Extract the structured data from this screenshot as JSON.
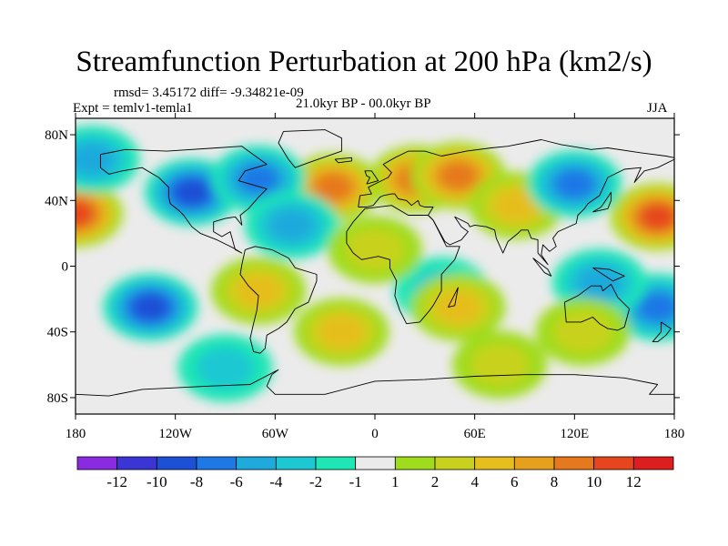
{
  "chart_data": {
    "type": "heatmap",
    "title": "Streamfunction Perturbation at 200 hPa (km2/s)",
    "stats_text": "rmsd= 3.45172 diff= -9.34821e-09",
    "experiment_text": "Expt = temlv1-temla1",
    "period_text": "21.0kyr BP - 00.0kyr BP",
    "season_text": "JJA",
    "x_range": [
      -180,
      180
    ],
    "y_range": [
      -90,
      90
    ],
    "x_ticks": [
      {
        "value": -180,
        "label": "180"
      },
      {
        "value": -120,
        "label": "120W"
      },
      {
        "value": -60,
        "label": "60W"
      },
      {
        "value": 0,
        "label": "0"
      },
      {
        "value": 60,
        "label": "60E"
      },
      {
        "value": 120,
        "label": "120E"
      },
      {
        "value": 180,
        "label": "180"
      }
    ],
    "y_ticks": [
      {
        "value": 80,
        "label": "80N"
      },
      {
        "value": 40,
        "label": "40N"
      },
      {
        "value": 0,
        "label": "0"
      },
      {
        "value": -40,
        "label": "40S"
      },
      {
        "value": -80,
        "label": "80S"
      }
    ],
    "colorbar": {
      "colors": [
        "#8a2be2",
        "#3c35d6",
        "#1e50d6",
        "#1e78e6",
        "#1eaadc",
        "#1ec8d2",
        "#1ee6b4",
        "#ebebeb",
        "#a0dc1e",
        "#c8d21e",
        "#e6be1e",
        "#e6a01e",
        "#e6781e",
        "#e6461e",
        "#dc1e1e"
      ],
      "levels": [
        "-12",
        "-10",
        "-8",
        "-6",
        "-4",
        "-2",
        "-1",
        "1",
        "2",
        "4",
        "6",
        "8",
        "10",
        "12"
      ]
    },
    "anomaly_centers": [
      {
        "lon": 25,
        "lat": 53,
        "value": 8.5
      },
      {
        "lon": 50,
        "lat": 55,
        "value": 9
      },
      {
        "lon": -25,
        "lat": 48,
        "value": 8
      },
      {
        "lon": 170,
        "lat": 30,
        "value": 10
      },
      {
        "lon": -180,
        "lat": 32,
        "value": 10
      },
      {
        "lon": 85,
        "lat": 37,
        "value": 4
      },
      {
        "lon": -110,
        "lat": 45,
        "value": -8
      },
      {
        "lon": -70,
        "lat": 53,
        "value": -6
      },
      {
        "lon": -50,
        "lat": 25,
        "value": -5
      },
      {
        "lon": 120,
        "lat": 50,
        "value": -6
      },
      {
        "lon": -170,
        "lat": 65,
        "value": -5
      },
      {
        "lon": -135,
        "lat": -25,
        "value": -9
      },
      {
        "lon": 170,
        "lat": -25,
        "value": -7
      },
      {
        "lon": 135,
        "lat": -10,
        "value": -4
      },
      {
        "lon": 40,
        "lat": -15,
        "value": -3
      },
      {
        "lon": -70,
        "lat": -15,
        "value": 4
      },
      {
        "lon": -20,
        "lat": -40,
        "value": 5
      },
      {
        "lon": 50,
        "lat": -25,
        "value": 5
      },
      {
        "lon": 125,
        "lat": -40,
        "value": 3
      },
      {
        "lon": 0,
        "lat": 10,
        "value": 2
      },
      {
        "lon": -90,
        "lat": -62,
        "value": -3
      },
      {
        "lon": 75,
        "lat": -60,
        "value": 2
      }
    ]
  }
}
